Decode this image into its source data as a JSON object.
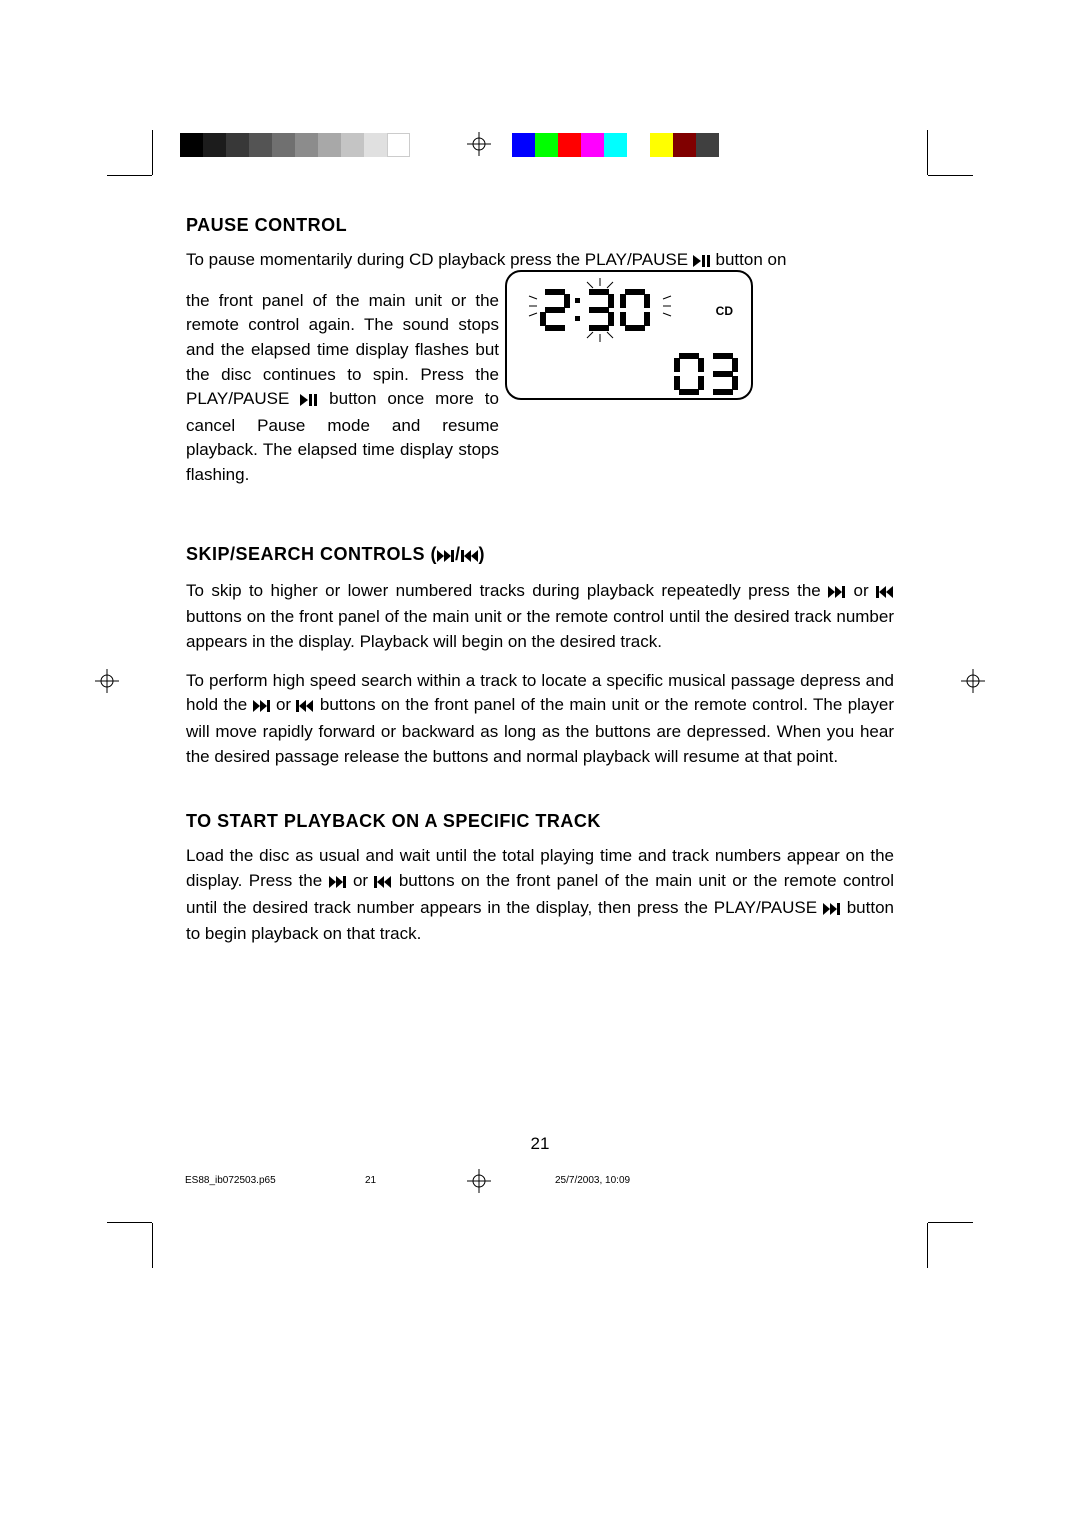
{
  "sections": {
    "pause": {
      "title": "PAUSE CONTROL",
      "p1_lead": "To pause momentarily during CD playback press the PLAY/PAUSE ",
      "p1_tail": " button on",
      "p2a": "the front panel of the main unit or the remote control again. The sound stops and the elapsed time display flashes but the disc continues to spin. Press the PLAY/PAUSE ",
      "p2b": " button once more to cancel Pause mode and resume playback. The elapsed time display stops flashing."
    },
    "skip": {
      "title": "SKIP/SEARCH CONTROLS (",
      "title_mid": "/",
      "title_end": ")",
      "p1a": "To skip to higher or lower numbered tracks during playback repeatedly press the ",
      "p1b": " or ",
      "p1c": " buttons on the front panel of the main unit or the remote control until the desired track number appears in the display. Playback will begin on the desired track.",
      "p2a": "To perform high speed search within a track to locate a specific musical passage depress and hold the ",
      "p2b": " or ",
      "p2c": " buttons on the front panel of the main unit or the remote control. The player will move rapidly forward or backward as long as the buttons are depressed. When you hear the desired passage release the buttons and normal playback will resume at that point."
    },
    "specific": {
      "title": "TO START PLAYBACK ON A SPECIFIC TRACK",
      "p1a": "Load the disc as usual and wait until the total playing time and track numbers appear on the display. Press the ",
      "p1b": " or ",
      "p1c": " buttons on the front panel of the main unit or the remote control until the desired track number appears in the display, then press the PLAY/PAUSE ",
      "p1d": " button to begin playback on that track."
    }
  },
  "lcd": {
    "cd_label": "CD"
  },
  "page_number": "21",
  "footer": {
    "file": "ES88_ib072503.p65",
    "page": "21",
    "timestamp": "25/7/2003, 10:09"
  },
  "print_bars": {
    "grays": [
      "#000000",
      "#1c1c1c",
      "#383838",
      "#545454",
      "#707070",
      "#8c8c8c",
      "#a8a8a8",
      "#c4c4c4",
      "#e0e0e0",
      "#ffffff"
    ],
    "colors": [
      "#0000ff",
      "#00ff00",
      "#ff0000",
      "#ff00ff",
      "#00ffff",
      "#ffffff",
      "#ffff00",
      "#800000",
      "#404040"
    ]
  }
}
